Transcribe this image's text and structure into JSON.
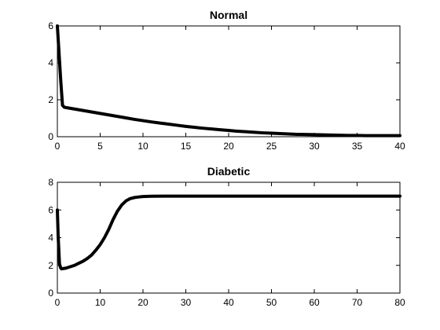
{
  "chart_data": [
    {
      "type": "line",
      "title": "Normal",
      "xlabel": "",
      "ylabel": "",
      "xlim": [
        0,
        40
      ],
      "ylim": [
        0,
        6
      ],
      "xticks": [
        0,
        5,
        10,
        15,
        20,
        25,
        30,
        35,
        40
      ],
      "yticks": [
        0,
        2,
        4,
        6
      ],
      "grid": false,
      "color": "#000000",
      "series": [
        {
          "x": [
            0,
            0.2,
            0.4,
            0.6,
            0.8,
            1,
            2,
            3,
            4,
            5,
            6,
            7,
            8,
            9,
            10,
            11,
            12,
            13,
            14,
            15,
            16,
            17,
            18,
            19,
            20,
            21,
            22,
            23,
            24,
            25,
            26,
            27,
            28,
            29,
            30,
            31,
            32,
            33,
            34,
            35,
            36,
            37,
            38,
            39,
            40
          ],
          "y": [
            6.0,
            4.5,
            3.0,
            1.7,
            1.6,
            1.58,
            1.5,
            1.42,
            1.34,
            1.26,
            1.18,
            1.1,
            1.02,
            0.94,
            0.87,
            0.8,
            0.74,
            0.68,
            0.62,
            0.56,
            0.51,
            0.46,
            0.42,
            0.38,
            0.34,
            0.3,
            0.27,
            0.24,
            0.21,
            0.19,
            0.17,
            0.15,
            0.13,
            0.12,
            0.11,
            0.1,
            0.09,
            0.08,
            0.07,
            0.07,
            0.06,
            0.06,
            0.06,
            0.06,
            0.06
          ]
        }
      ]
    },
    {
      "type": "line",
      "title": "Diabetic",
      "xlabel": "",
      "ylabel": "",
      "xlim": [
        0,
        80
      ],
      "ylim": [
        0,
        8
      ],
      "xticks": [
        0,
        10,
        20,
        30,
        40,
        50,
        60,
        70,
        80
      ],
      "yticks": [
        0,
        2,
        4,
        6,
        8
      ],
      "grid": false,
      "color": "#000000",
      "series": [
        {
          "x": [
            0,
            0.2,
            0.5,
            0.8,
            1,
            2,
            3,
            4,
            5,
            6,
            7,
            8,
            9,
            10,
            11,
            12,
            13,
            14,
            15,
            16,
            17,
            18,
            19,
            20,
            22,
            25,
            30,
            40,
            50,
            60,
            70,
            80
          ],
          "y": [
            6.0,
            4.0,
            2.1,
            1.8,
            1.75,
            1.8,
            1.9,
            2.0,
            2.15,
            2.3,
            2.5,
            2.75,
            3.1,
            3.5,
            4.0,
            4.6,
            5.3,
            5.9,
            6.35,
            6.65,
            6.82,
            6.9,
            6.94,
            6.97,
            6.99,
            7.0,
            7.0,
            7.0,
            7.0,
            7.0,
            7.0,
            7.0
          ]
        }
      ]
    }
  ]
}
